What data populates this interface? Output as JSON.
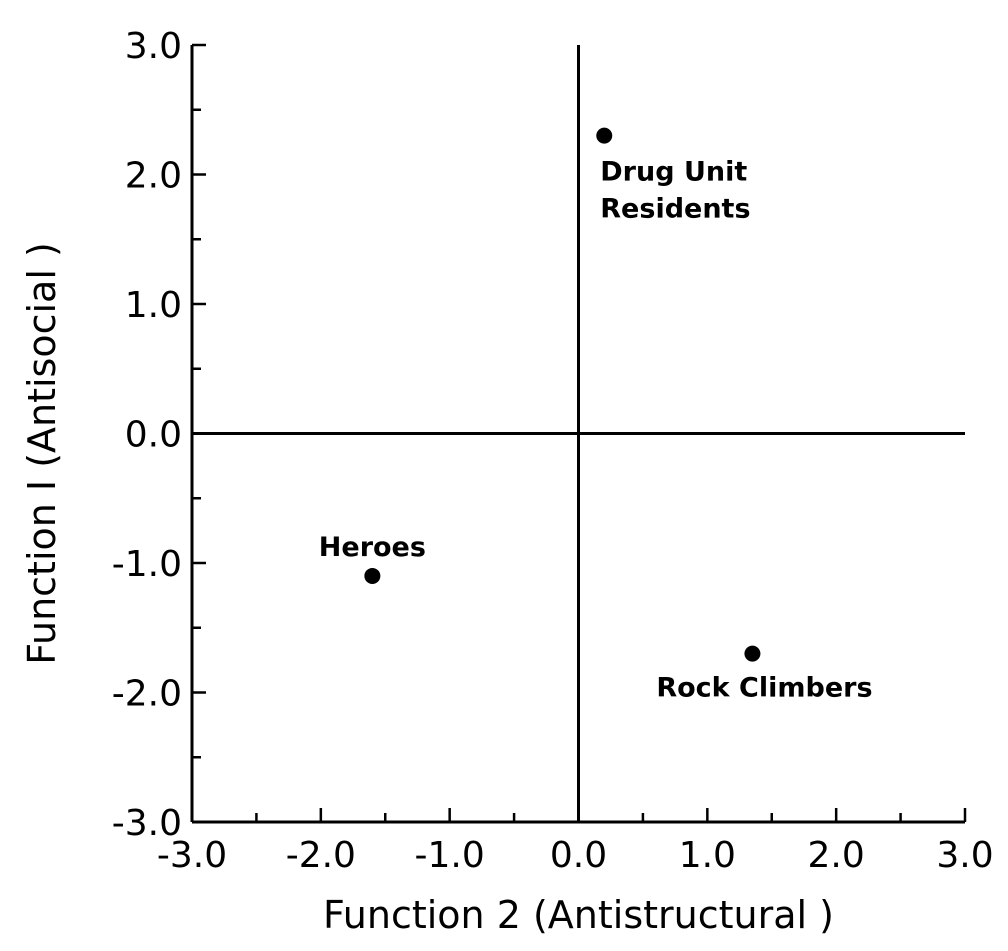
{
  "chart_data": {
    "type": "scatter",
    "title": "",
    "xlabel": "Function 2 (Antistructural )",
    "ylabel": "Function I (Antisocial )",
    "xlim": [
      -3.0,
      3.0
    ],
    "ylim": [
      -3.0,
      3.0
    ],
    "x_ticks": [
      -3.0,
      -2.0,
      -1.0,
      0.0,
      1.0,
      2.0,
      3.0
    ],
    "x_tick_labels": [
      "-3.0",
      "-2.0",
      "-1.0",
      "0.0",
      "1.0",
      "2.0",
      "3.0"
    ],
    "y_ticks": [
      3.0,
      2.0,
      1.0,
      0.0,
      -1.0,
      -2.0,
      -3.0
    ],
    "y_tick_labels": [
      "3.0",
      "2.0",
      "1.0",
      "0.0",
      "-1.0",
      "-2.0",
      "-3.0"
    ],
    "minor_tick_step": 0.5,
    "grid": false,
    "reference_lines": {
      "x": 0.0,
      "y": 0.0
    },
    "points": [
      {
        "label_lines": [
          "Drug Unit",
          "Residents"
        ],
        "x": 0.2,
        "y": 2.3,
        "label_position": "below-right"
      },
      {
        "label_lines": [
          "Heroes"
        ],
        "x": -1.6,
        "y": -1.1,
        "label_position": "above"
      },
      {
        "label_lines": [
          "Rock Climbers"
        ],
        "x": 1.35,
        "y": -1.7,
        "label_position": "below"
      }
    ],
    "marker_color": "#000000"
  }
}
